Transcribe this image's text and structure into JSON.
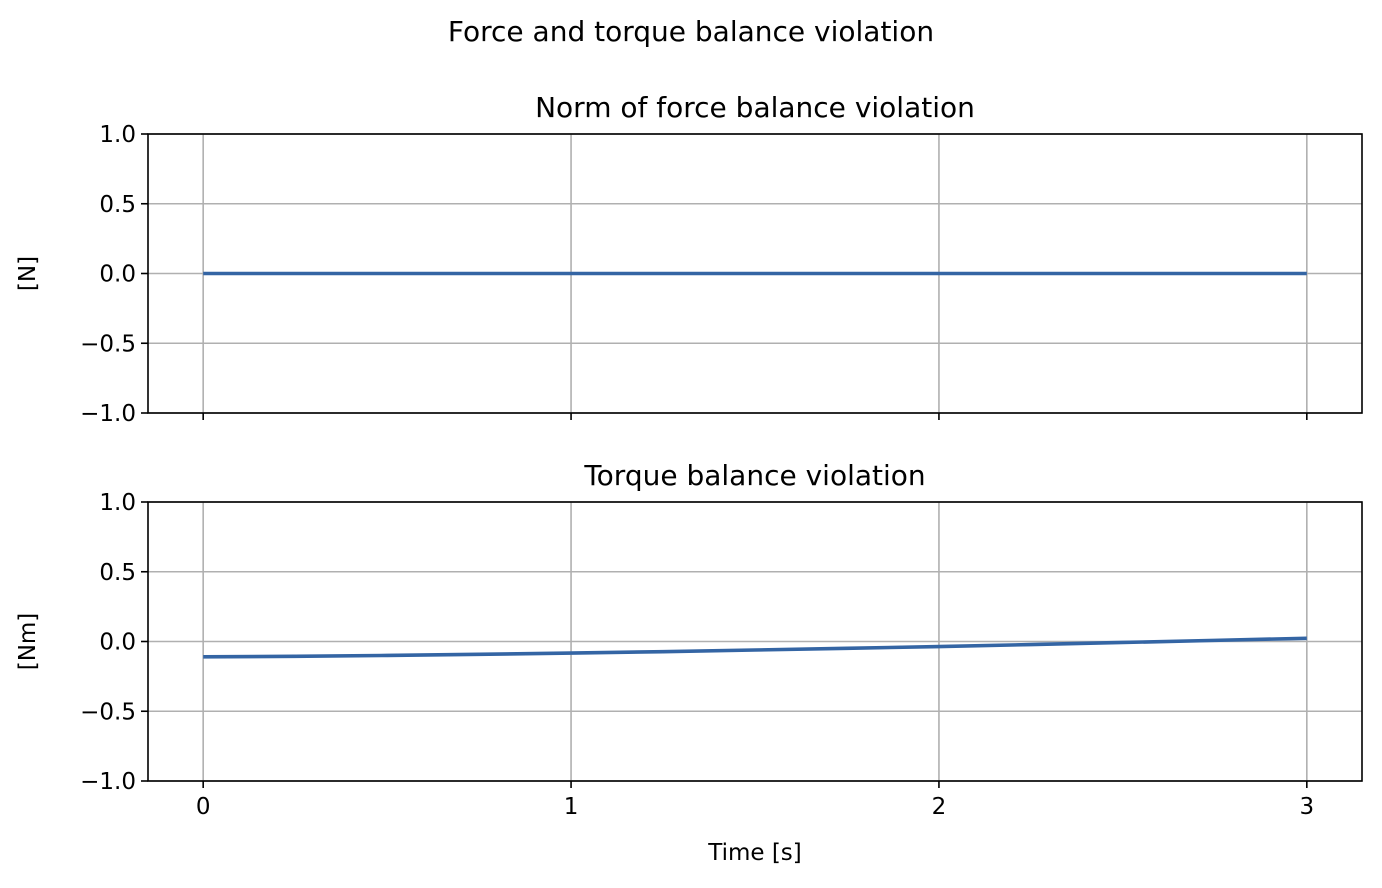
{
  "figure_title": "Force and torque balance violation",
  "colors": {
    "series": "#3465a4",
    "grid": "#b0b0b0",
    "frame": "#000000"
  },
  "chart_data": [
    {
      "type": "line",
      "title": "Norm of force balance violation",
      "xlabel": "",
      "ylabel": "[N]",
      "xlim": [
        -0.15,
        3.15
      ],
      "ylim": [
        -1.0,
        1.0
      ],
      "xticks": [
        0,
        1,
        2,
        3
      ],
      "xtick_labels": [
        "",
        "",
        "",
        ""
      ],
      "yticks": [
        1.0,
        0.5,
        0.0,
        -0.5,
        -1.0
      ],
      "ytick_labels": [
        "1.0",
        "0.5",
        "0.0",
        "−0.5",
        "−1.0"
      ],
      "grid": true,
      "series": [
        {
          "x": [
            0,
            0.5,
            1,
            1.5,
            2,
            2.5,
            3
          ],
          "y": [
            0,
            0,
            0,
            0,
            0,
            0,
            0
          ]
        }
      ]
    },
    {
      "type": "line",
      "title": "Torque balance violation",
      "xlabel": "Time [s]",
      "ylabel": "[Nm]",
      "xlim": [
        -0.15,
        3.15
      ],
      "ylim": [
        -1.0,
        1.0
      ],
      "xticks": [
        0,
        1,
        2,
        3
      ],
      "xtick_labels": [
        "0",
        "1",
        "2",
        "3"
      ],
      "yticks": [
        1.0,
        0.5,
        0.0,
        -0.5,
        -1.0
      ],
      "ytick_labels": [
        "1.0",
        "0.5",
        "0.0",
        "−0.5",
        "−1.0"
      ],
      "grid": true,
      "series": [
        {
          "x": [
            0,
            0.25,
            0.5,
            0.75,
            1,
            1.25,
            1.5,
            1.75,
            2,
            2.25,
            2.5,
            2.75,
            3
          ],
          "y": [
            -0.11,
            -0.106,
            -0.1,
            -0.092,
            -0.083,
            -0.073,
            -0.061,
            -0.049,
            -0.036,
            -0.022,
            -0.007,
            0.008,
            0.023
          ]
        }
      ]
    }
  ]
}
